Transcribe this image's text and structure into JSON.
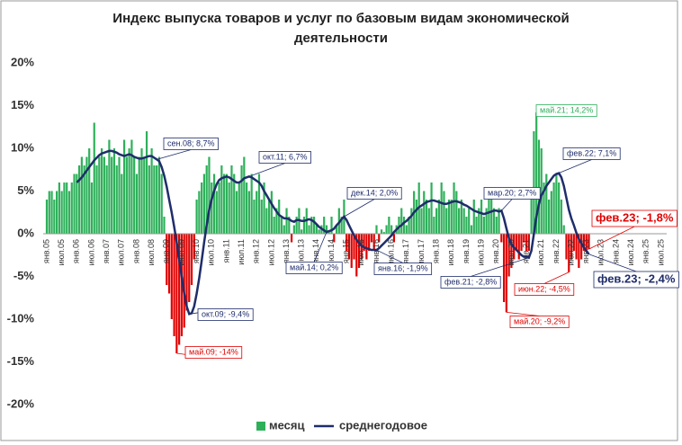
{
  "chart_data": {
    "type": "combo",
    "title": [
      "Индекс выпуска товаров и услуг по базовым видам экономической",
      "деятельности"
    ],
    "categories": [
      "янв.05",
      null,
      null,
      null,
      null,
      null,
      "июл.05",
      null,
      null,
      null,
      null,
      null,
      "янв.06",
      null,
      null,
      null,
      null,
      null,
      "июл.06",
      null,
      null,
      null,
      null,
      null,
      "янв.07",
      null,
      null,
      null,
      null,
      null,
      "июл.07",
      null,
      null,
      null,
      null,
      null,
      "янв.08",
      null,
      null,
      null,
      null,
      null,
      "июл.08",
      null,
      null,
      null,
      null,
      null,
      "янв.09",
      null,
      null,
      null,
      null,
      null,
      "июл.09",
      null,
      null,
      null,
      null,
      null,
      "янв.10",
      null,
      null,
      null,
      null,
      null,
      "июл.10",
      null,
      null,
      null,
      null,
      null,
      "янв.11",
      null,
      null,
      null,
      null,
      null,
      "июл.11",
      null,
      null,
      null,
      null,
      null,
      "янв.12",
      null,
      null,
      null,
      null,
      null,
      "июл.12",
      null,
      null,
      null,
      null,
      null,
      "янв.13",
      null,
      null,
      null,
      null,
      null,
      "июл.13",
      null,
      null,
      null,
      null,
      null,
      "янв.14",
      null,
      null,
      null,
      null,
      null,
      "июл.14",
      null,
      null,
      null,
      null,
      null,
      "янв.15",
      null,
      null,
      null,
      null,
      null,
      "июл.15",
      null,
      null,
      null,
      null,
      null,
      "янв.16",
      null,
      null,
      null,
      null,
      null,
      "июл.16",
      null,
      null,
      null,
      null,
      null,
      "янв.17",
      null,
      null,
      null,
      null,
      null,
      "июл.17",
      null,
      null,
      null,
      null,
      null,
      "янв.18",
      null,
      null,
      null,
      null,
      null,
      "июл.18",
      null,
      null,
      null,
      null,
      null,
      "янв.19",
      null,
      null,
      null,
      null,
      null,
      "июл.19",
      null,
      null,
      null,
      null,
      null,
      "янв.20",
      null,
      null,
      null,
      null,
      null,
      "июл.20",
      null,
      null,
      null,
      null,
      null,
      "янв.21",
      null,
      null,
      null,
      null,
      null,
      "июл.21",
      null,
      null,
      null,
      null,
      null,
      "янв.22",
      null,
      null,
      null,
      null,
      null,
      "июл.22",
      null,
      null,
      null,
      null,
      null,
      "янв.23",
      null,
      null,
      null,
      null,
      null,
      "июл.23",
      null,
      null,
      null,
      null,
      null,
      "янв.24",
      null,
      null,
      null,
      null,
      null,
      "июл.24",
      null,
      null,
      null,
      null,
      null,
      "янв.25",
      null,
      null,
      null,
      null,
      null,
      "июл.25"
    ],
    "series": [
      {
        "name": "месяц",
        "type": "bar",
        "color": "#2eb05a",
        "negative_color": "#e00000",
        "values": [
          4,
          5,
          5,
          4,
          5,
          6,
          5,
          6,
          6,
          5,
          6,
          7,
          7,
          8,
          9,
          8,
          9,
          10,
          6,
          13,
          8,
          9,
          10,
          9,
          8,
          11,
          9,
          10,
          8,
          9,
          7,
          11,
          9,
          10,
          11,
          9,
          7,
          9,
          10,
          9,
          12,
          8,
          10,
          8,
          8,
          9,
          7,
          2,
          -6,
          -7,
          -10,
          -12,
          -14,
          -13,
          -12,
          -11,
          -9,
          -8,
          -6,
          -3,
          4,
          5,
          6,
          7,
          8,
          9,
          6,
          7,
          5,
          6,
          8,
          7,
          7,
          6,
          8,
          7,
          5,
          6,
          8,
          9,
          6,
          5,
          7,
          4,
          5,
          7,
          4,
          6,
          3,
          4,
          5,
          2,
          3,
          4,
          2,
          1,
          3,
          2,
          -1,
          1,
          2,
          3,
          0.5,
          2,
          3,
          1,
          2,
          2,
          1,
          0.5,
          1,
          2,
          1,
          0.2,
          2,
          -1,
          1,
          3,
          2,
          4,
          -2,
          -3,
          -4,
          -3,
          -5,
          -4,
          -3,
          -2,
          -3,
          -2,
          -1,
          -2,
          1,
          -1,
          0.5,
          0.2,
          1,
          2,
          1,
          -1,
          1,
          2,
          3,
          2,
          1,
          2,
          3,
          5,
          4,
          6,
          3,
          5,
          4,
          3,
          6,
          2,
          3,
          4,
          6,
          5,
          3,
          4,
          4,
          6,
          5,
          3,
          4,
          3,
          2,
          3,
          1,
          4,
          2,
          3,
          4,
          2,
          3,
          5,
          4,
          3,
          2,
          3,
          -1,
          -8,
          -9.2,
          -5,
          -4,
          -3,
          -2,
          -3,
          -2,
          -1,
          -2,
          -2,
          5,
          12,
          14.2,
          11,
          10,
          6,
          7,
          4,
          5,
          6,
          7,
          6,
          4,
          1,
          -3,
          -4.5,
          -3,
          -2,
          -3,
          -4,
          -3,
          -2,
          -2,
          -1.8,
          null,
          null,
          null,
          null,
          null,
          null,
          null,
          null,
          null,
          null,
          null,
          null,
          null,
          null,
          null,
          null,
          null,
          null,
          null,
          null,
          null,
          null,
          null,
          null,
          null,
          null,
          null,
          null,
          null
        ]
      },
      {
        "name": "среднегодовое",
        "type": "line",
        "color": "#1f2d6b",
        "values": [
          null,
          null,
          null,
          null,
          null,
          null,
          null,
          null,
          null,
          null,
          null,
          null,
          6.0,
          6.3,
          6.6,
          7.0,
          7.4,
          7.8,
          8.2,
          8.6,
          8.9,
          9.2,
          9.4,
          9.5,
          9.6,
          9.7,
          9.7,
          9.6,
          9.5,
          9.3,
          9.2,
          9.1,
          9.2,
          9.3,
          9.2,
          9.0,
          8.9,
          8.8,
          8.8,
          8.9,
          9.0,
          9.1,
          9.1,
          8.9,
          8.7,
          8.5,
          7.8,
          6.8,
          5.5,
          4.0,
          2.5,
          0.8,
          -1.0,
          -3.0,
          -5.0,
          -7.0,
          -8.5,
          -9.4,
          -9.3,
          -8.5,
          -7.0,
          -5.2,
          -3.2,
          -1.0,
          1.0,
          2.8,
          4.0,
          5.0,
          5.8,
          6.3,
          6.5,
          6.6,
          6.7,
          6.6,
          6.4,
          6.2,
          6.0,
          6.0,
          6.2,
          6.5,
          6.6,
          6.7,
          6.6,
          6.4,
          6.2,
          6.0,
          5.6,
          5.0,
          4.5,
          4.0,
          3.5,
          3.0,
          2.6,
          2.2,
          2.0,
          1.8,
          1.8,
          1.7,
          1.5,
          1.4,
          1.6,
          1.6,
          1.5,
          1.5,
          1.6,
          1.7,
          1.6,
          1.4,
          1.1,
          0.8,
          0.6,
          0.4,
          0.2,
          0.3,
          0.4,
          0.6,
          1.0,
          1.3,
          1.7,
          2.0,
          1.6,
          1.0,
          0.4,
          -0.2,
          -0.7,
          -1.1,
          -1.4,
          -1.6,
          -1.7,
          -1.8,
          -1.9,
          -1.9,
          -1.9,
          -1.7,
          -1.4,
          -1.1,
          -0.8,
          -0.5,
          -0.2,
          0.2,
          0.5,
          0.8,
          1.0,
          1.3,
          1.5,
          1.8,
          2.1,
          2.5,
          2.8,
          3.1,
          3.3,
          3.5,
          3.7,
          3.8,
          3.9,
          3.9,
          3.8,
          3.7,
          3.6,
          3.5,
          3.5,
          3.6,
          3.7,
          3.8,
          3.8,
          3.7,
          3.6,
          3.4,
          3.3,
          3.1,
          2.9,
          2.7,
          2.6,
          2.5,
          2.4,
          2.3,
          2.4,
          2.5,
          2.6,
          2.7,
          2.7,
          2.6,
          2.7,
          1.8,
          0.6,
          -0.5,
          -1.2,
          -1.6,
          -1.9,
          -2.2,
          -2.5,
          -2.7,
          -2.7,
          -2.8,
          -2.0,
          0.0,
          2.0,
          3.5,
          4.5,
          5.0,
          5.6,
          6.0,
          6.4,
          6.8,
          7.0,
          7.1,
          6.6,
          5.6,
          4.2,
          2.8,
          1.8,
          1.0,
          0.1,
          -0.6,
          -1.1,
          -1.6,
          -2.0,
          -2.4,
          null,
          null,
          null,
          null,
          null,
          null,
          null,
          null,
          null,
          null,
          null,
          null,
          null,
          null,
          null,
          null,
          null,
          null,
          null,
          null,
          null,
          null,
          null,
          null,
          null,
          null,
          null,
          null,
          null
        ]
      }
    ],
    "ylim": [
      -20,
      20
    ],
    "yticks": [
      {
        "value": 20,
        "label": "20%"
      },
      {
        "value": 15,
        "label": "15%"
      },
      {
        "value": 10,
        "label": "10%"
      },
      {
        "value": 5,
        "label": "5%"
      },
      {
        "value": 0,
        "label": "0%"
      },
      {
        "value": -5,
        "label": "-5%"
      },
      {
        "value": -10,
        "label": "-10%"
      },
      {
        "value": -15,
        "label": "-15%"
      },
      {
        "value": -20,
        "label": "-20%"
      }
    ],
    "grid": false,
    "annotations": [
      {
        "text": "сен.08; 8,7%",
        "color": "#1f2d6b"
      },
      {
        "text": "окт.09; -9,4%",
        "color": "#1f2d6b"
      },
      {
        "text": "май.09; -14%",
        "color": "#e00000"
      },
      {
        "text": "окт.11; 6,7%",
        "color": "#1f2d6b"
      },
      {
        "text": "май.14; 0,2%",
        "color": "#1f2d6b"
      },
      {
        "text": "дек.14; 2,0%",
        "color": "#1f2d6b"
      },
      {
        "text": "янв.16; -1,9%",
        "color": "#1f2d6b"
      },
      {
        "text": "мар.20; 2,7%",
        "color": "#1f2d6b"
      },
      {
        "text": "фев.21; -2,8%",
        "color": "#1f2d6b"
      },
      {
        "text": "май.20; -9,2%",
        "color": "#e00000"
      },
      {
        "text": "май.21; 14,2%",
        "color": "#2eb05a"
      },
      {
        "text": "фев.22; 7,1%",
        "color": "#1f2d6b"
      },
      {
        "text": "июн.22; -4,5%",
        "color": "#e00000"
      },
      {
        "text": "фев.23; -1,8%",
        "color": "#e00000"
      },
      {
        "text": "фев.23; -2,4%",
        "color": "#1f2d6b"
      }
    ]
  }
}
